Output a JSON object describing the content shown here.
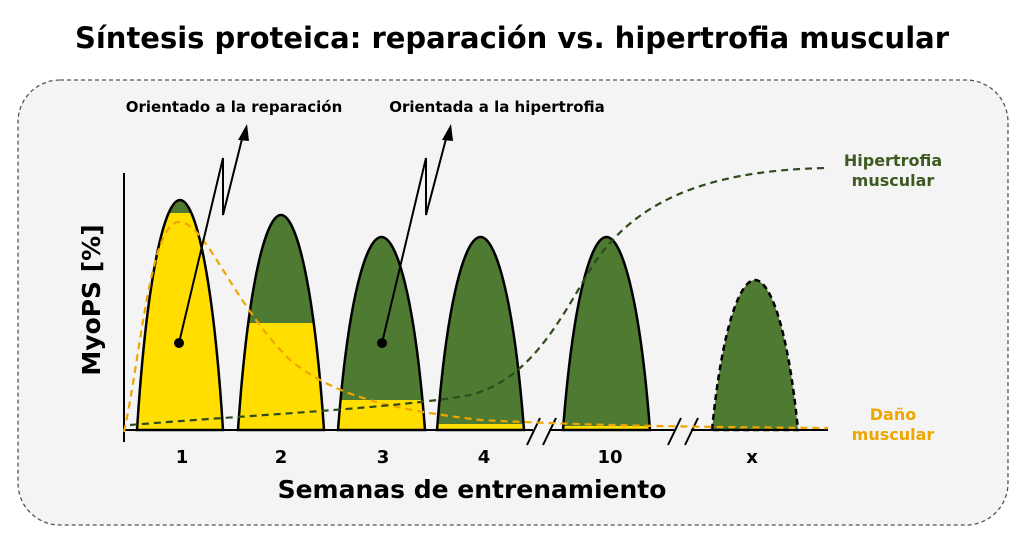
{
  "title": "Síntesis proteica: reparación vs. hipertrofia muscular",
  "y_axis_label": "MyoPS [%]",
  "x_axis_label": "Semanas de entrenamiento",
  "week_labels": [
    "1",
    "2",
    "3",
    "4",
    "10",
    "x"
  ],
  "annotations": {
    "repair": "Orientado a la reparación",
    "hypertrophy": "Orientada a la hipertrofia"
  },
  "curve_labels": {
    "hypertrophy": [
      "Hipertrofia",
      "muscular"
    ],
    "damage": [
      "Daño",
      "muscular"
    ]
  },
  "legend_meaning": {
    "yellow": "repair-oriented synthesis",
    "green": "hypertrophy-oriented synthesis"
  },
  "colors": {
    "repair_yellow": "#ffde00",
    "hypertrophy_green": "#4e7a31",
    "hypertrophy_label": "#3d5a22",
    "damage_orange": "#f0a500",
    "panel_bg": "#f4f4f4"
  }
}
